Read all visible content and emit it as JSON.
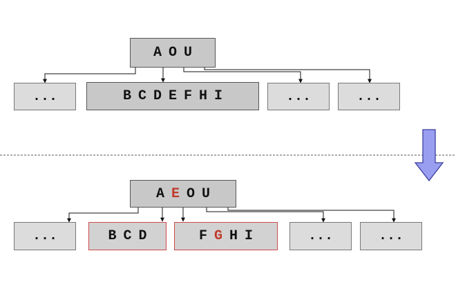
{
  "colors": {
    "node_fill": "#c8c8c8",
    "leaf_fill": "#dcdcdc",
    "split_border": "#d04848",
    "highlight": "#c0392b",
    "arrow_fill": "#9a9ef0",
    "arrow_stroke": "#3b3f9e",
    "divider": "#555555"
  },
  "before": {
    "root": {
      "keys": [
        "A",
        "O",
        "U"
      ]
    },
    "children": [
      {
        "keys": [
          "..."
        ]
      },
      {
        "keys": [
          "B",
          "C",
          "D",
          "E",
          "F",
          "H",
          "I"
        ]
      },
      {
        "keys": [
          "..."
        ]
      },
      {
        "keys": [
          "..."
        ]
      }
    ]
  },
  "transition_arrow": {
    "icon": "down-arrow-icon"
  },
  "after": {
    "root": {
      "keys": [
        "A",
        "E",
        "O",
        "U"
      ],
      "highlighted_key": "E"
    },
    "children": [
      {
        "keys": [
          "..."
        ]
      },
      {
        "keys": [
          "B",
          "C",
          "D"
        ]
      },
      {
        "keys": [
          "F",
          "G",
          "H",
          "I"
        ],
        "highlighted_key": "G"
      },
      {
        "keys": [
          "..."
        ]
      },
      {
        "keys": [
          "..."
        ]
      }
    ]
  }
}
